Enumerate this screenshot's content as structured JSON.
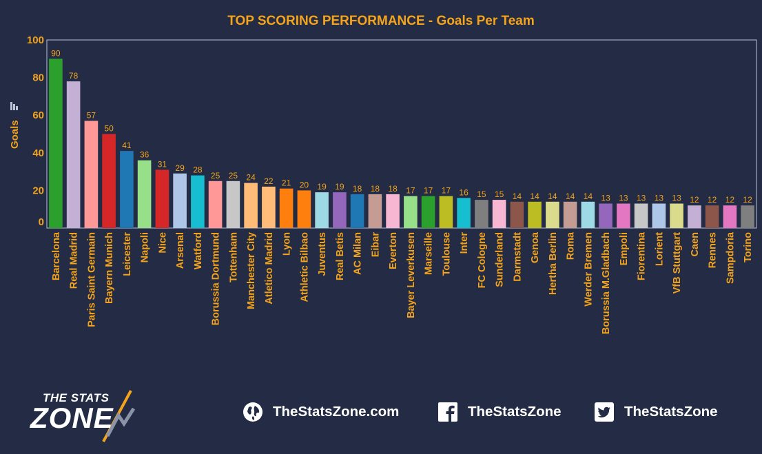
{
  "chart_data": {
    "type": "bar",
    "title": "TOP SCORING PERFORMANCE - Goals Per Team",
    "ylabel": "Goals",
    "ylim": [
      0,
      100
    ],
    "yticks": [
      0,
      20,
      40,
      60,
      80,
      100
    ],
    "grid": false,
    "categories": [
      "Barcelona",
      "Real Madrid",
      "Paris Saint Germain",
      "Bayern Munich",
      "Leicester",
      "Napoli",
      "Nice",
      "Arsenal",
      "Watford",
      "Borussia Dortmund",
      "Tottenham",
      "Manchester City",
      "Atletico Madrid",
      "Lyon",
      "Athletic Bilbao",
      "Juventus",
      "Real Betis",
      "AC Milan",
      "Eibar",
      "Everton",
      "Bayer Leverkusen",
      "Marseille",
      "Toulouse",
      "Inter",
      "FC Cologne",
      "Sunderland",
      "Darmstadt",
      "Genoa",
      "Hertha Berlin",
      "Roma",
      "Werder Bremen",
      "Borussia M.Gladbach",
      "Empoli",
      "Fiorentina",
      "Lorient",
      "VfB Stuttgart",
      "Caen",
      "Rennes",
      "Sampdoria",
      "Torino"
    ],
    "values": [
      90,
      78,
      57,
      50,
      41,
      36,
      31,
      29,
      28,
      25,
      25,
      24,
      22,
      21,
      20,
      19,
      19,
      18,
      18,
      18,
      17,
      17,
      17,
      16,
      15,
      15,
      14,
      14,
      14,
      14,
      14,
      13,
      13,
      13,
      13,
      13,
      12,
      12,
      12,
      12
    ],
    "value_labels": [
      "90",
      "78",
      "57",
      "50",
      "41",
      "36",
      "31",
      "29",
      "28",
      "25",
      "25",
      "24",
      "22",
      "21",
      "20",
      "19",
      "19",
      "18",
      "18",
      "18",
      "17",
      "17",
      "17",
      "16",
      "15",
      "15",
      "14",
      "14",
      "14",
      "14",
      "14",
      "13",
      "13",
      "13",
      "13",
      "13",
      "12",
      "12",
      "12",
      "12"
    ],
    "colors": [
      "#2ca02c",
      "#c5b0d5",
      "#ff9896",
      "#d62728",
      "#1f77b4",
      "#98df8a",
      "#d62728",
      "#aec7e8",
      "#17becf",
      "#ff9896",
      "#c7c7c7",
      "#ffbb78",
      "#ffbb78",
      "#ff7f0e",
      "#ff7f0e",
      "#9edae5",
      "#9467bd",
      "#1f77b4",
      "#c49c94",
      "#f7b6d2",
      "#98df8a",
      "#2ca02c",
      "#bcbd22",
      "#17becf",
      "#7f7f7f",
      "#f7b6d2",
      "#8c564b",
      "#bcbd22",
      "#dbdb8d",
      "#c49c94",
      "#9edae5",
      "#9467bd",
      "#e377c2",
      "#c7c7c7",
      "#aec7e8",
      "#dbdb8d",
      "#c5b0d5",
      "#8c564b",
      "#e377c2",
      "#7f7f7f"
    ]
  },
  "footer": {
    "logo_top": "THE STATS",
    "logo_main": "ZONE",
    "website": "TheStatsZone.com",
    "facebook": "TheStatsZone",
    "twitter": "TheStatsZone",
    "website_icon": "globe-icon",
    "facebook_icon": "facebook-icon",
    "twitter_icon": "twitter-icon"
  },
  "theme": {
    "background": "#232c44",
    "accent": "#f4a31b",
    "axis": "#b9c2d6"
  }
}
